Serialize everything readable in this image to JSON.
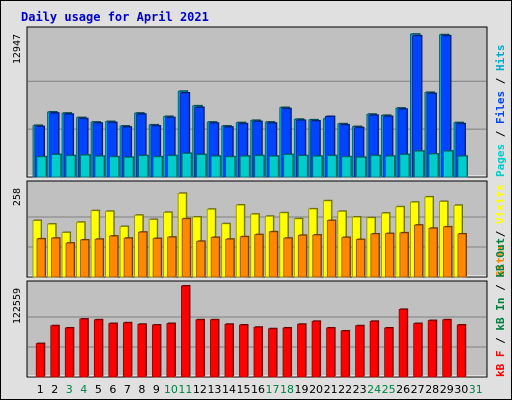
{
  "colors": {
    "background": "#e0e0e0",
    "plot_bg": "#c0c0c0",
    "title": "#0000cc",
    "hits": "#00aacc",
    "files": "#0044ff",
    "pages": "#00cccc",
    "visits": "#ffff00",
    "sites": "#ff8800",
    "kbytes": "#ff0000",
    "weekend": "#008040",
    "label_dark": "#000000"
  },
  "chart_data": {
    "type": "bar",
    "title": "Daily usage for April 2021",
    "x": [
      "1",
      "2",
      "3",
      "4",
      "5",
      "6",
      "7",
      "8",
      "9",
      "10",
      "11",
      "12",
      "13",
      "14",
      "15",
      "16",
      "17",
      "18",
      "19",
      "20",
      "21",
      "22",
      "23",
      "24",
      "25",
      "26",
      "27",
      "28",
      "29",
      "30",
      "31"
    ],
    "weekend_days": [
      "3",
      "4",
      "10",
      "11",
      "17",
      "18",
      "24",
      "25",
      "31"
    ],
    "panels": [
      {
        "id": "hits-files-pages",
        "ymax": 12947,
        "ymax_label": "12947",
        "right_label": [
          {
            "text": "Pages",
            "color": "#00cccc"
          },
          {
            "text": " / ",
            "color": "#000000"
          },
          {
            "text": "Files",
            "color": "#0044ff"
          },
          {
            "text": " / ",
            "color": "#000000"
          },
          {
            "text": "Hits",
            "color": "#00aacc"
          }
        ],
        "series": [
          {
            "name": "Hits",
            "color": "#00aacc",
            "values": [
              4600,
              5800,
              5700,
              5300,
              4900,
              4950,
              4550,
              5700,
              4650,
              5400,
              7650,
              6350,
              4900,
              4550,
              4850,
              5050,
              4900,
              6200,
              5150,
              5100,
              5200,
              4750,
              4500,
              5600,
              5500,
              6150,
              12750,
              7550,
              12700,
              4850,
              0
            ]
          },
          {
            "name": "Files",
            "color": "#0044ff",
            "values": [
              4500,
              5700,
              5600,
              5200,
              4800,
              4850,
              4450,
              5600,
              4550,
              5300,
              7500,
              6200,
              4800,
              4450,
              4750,
              4950,
              4800,
              6100,
              5050,
              5000,
              5400,
              4650,
              4400,
              5500,
              5400,
              6050,
              12600,
              7450,
              12600,
              4750,
              0
            ]
          },
          {
            "name": "Pages",
            "color": "#00cccc",
            "values": [
              1800,
              2000,
              1900,
              1950,
              1850,
              1800,
              1750,
              1900,
              1800,
              1900,
              2100,
              2000,
              1850,
              1800,
              1850,
              1900,
              1850,
              2000,
              1900,
              1850,
              1900,
              1800,
              1750,
              1900,
              1850,
              2000,
              2300,
              2050,
              2300,
              1850,
              0
            ]
          }
        ]
      },
      {
        "id": "visits-sites",
        "ymax": 258,
        "ymax_label": "258",
        "right_label": [
          {
            "text": "Sites",
            "color": "#ff8800"
          },
          {
            "text": " / ",
            "color": "#000000"
          },
          {
            "text": "Visits",
            "color": "#ffff00"
          }
        ],
        "series": [
          {
            "name": "Visits",
            "color": "#ffff00",
            "values": [
              160,
              150,
              126,
              155,
              188,
              186,
              143,
              175,
              163,
              183,
              237,
              170,
              192,
              151,
              204,
              178,
              172,
              182,
              165,
              193,
              216,
              186,
              170,
              168,
              181,
              199,
              212,
              227,
              214,
              203,
              0
            ]
          },
          {
            "name": "Sites",
            "color": "#ff8800",
            "values": [
              108,
              110,
              96,
              105,
              107,
              116,
              110,
              127,
              109,
              113,
              165,
              101,
              112,
              107,
              114,
              120,
              128,
              110,
              118,
              119,
              160,
              112,
              106,
              122,
              123,
              125,
              147,
              138,
              142,
              122,
              0
            ]
          }
        ]
      },
      {
        "id": "kbytes",
        "ymax": 122559,
        "ymax_label": "122559",
        "right_label": [
          {
            "text": "kB F",
            "color": "#ff0000"
          },
          {
            "text": " / ",
            "color": "#000000"
          },
          {
            "text": "kB In",
            "color": "#008040"
          },
          {
            "text": " / ",
            "color": "#000000"
          },
          {
            "text": "kB Out",
            "color": "#008040"
          }
        ],
        "series": [
          {
            "name": "kB F",
            "color": "#ff0000",
            "values": [
              45000,
              69000,
              66000,
              78000,
              77000,
              72000,
              73000,
              71000,
              70000,
              72000,
              122559,
              77000,
              77000,
              71000,
              70000,
              67000,
              65000,
              66000,
              71000,
              75000,
              66000,
              62000,
              69000,
              75000,
              66000,
              91000,
              72000,
              76000,
              77000,
              70000,
              0
            ]
          }
        ]
      }
    ]
  }
}
